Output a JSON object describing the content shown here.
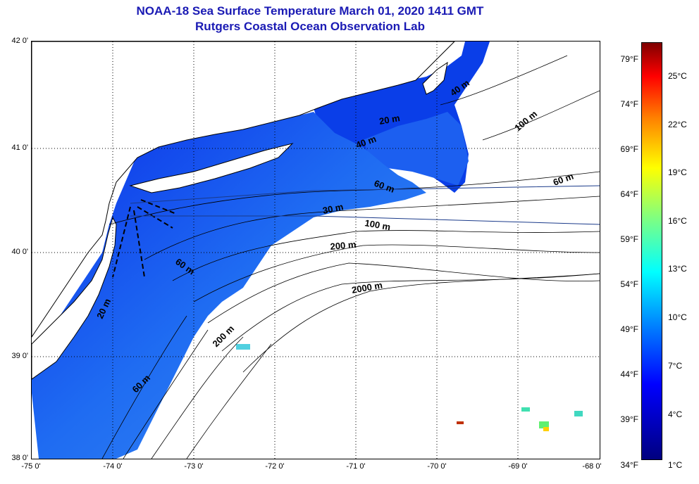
{
  "title": "NOAA-18 Sea Surface Temperature March 01, 2020 1411 GMT",
  "subtitle": "Rutgers Coastal Ocean Observation Lab",
  "lat_labels": [
    "42 0'",
    "41 0'",
    "40 0'",
    "39 0'",
    "38 0'"
  ],
  "lon_labels": [
    "-75 0'",
    "-74 0'",
    "-73 0'",
    "-72 0'",
    "-71 0'",
    "-70 0'",
    "-69 0'",
    "-68 0'"
  ],
  "colorbar": {
    "fahrenheit": [
      "79°F",
      "74°F",
      "69°F",
      "64°F",
      "59°F",
      "54°F",
      "49°F",
      "44°F",
      "39°F",
      "34°F"
    ],
    "celsius": [
      "25°C",
      "22°C",
      "19°C",
      "16°C",
      "13°C",
      "10°C",
      "7°C",
      "4°C",
      "1°C"
    ]
  },
  "contour_labels": [
    "40 m",
    "100 m",
    "20 m",
    "40 m",
    "60 m",
    "60 m",
    "30 m",
    "100 m",
    "200 m",
    "60 m",
    "2000 m",
    "20 m",
    "200 m",
    "60 m"
  ],
  "colors": {
    "title": "#1a1ab4",
    "sst_cold": "#0a2ee8",
    "sst_mid": "#2a7cf4"
  }
}
